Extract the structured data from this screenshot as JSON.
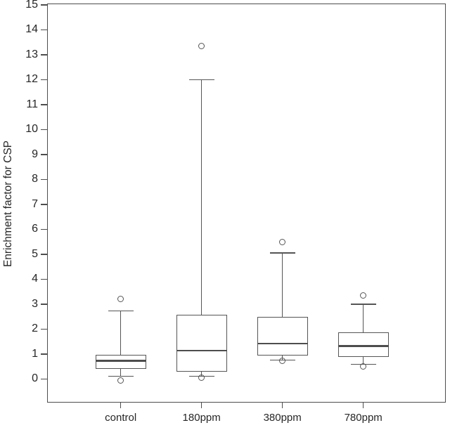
{
  "figure": {
    "background": "#ffffff",
    "line_color": "#555555",
    "text_color": "#262626"
  },
  "chart_data": {
    "type": "boxplot",
    "title": "",
    "xlabel": "",
    "ylabel": "Enrichment factor for CSP",
    "categories": [
      "control",
      "180ppm",
      "380ppm",
      "780ppm"
    ],
    "y_ticks": [
      0,
      1,
      2,
      3,
      4,
      5,
      6,
      7,
      8,
      9,
      10,
      11,
      12,
      13,
      14,
      15
    ],
    "ylim": [
      -0.95,
      15.05
    ],
    "xlim": [
      0.09,
      5.02
    ],
    "grid": false,
    "legend": "none",
    "series": [
      {
        "category": "control",
        "whisker_low": 0.1,
        "q1": 0.39,
        "median": 0.72,
        "q3": 0.96,
        "whisker_high": 2.72,
        "outliers": [
          3.2,
          -0.05
        ]
      },
      {
        "category": "180ppm",
        "whisker_low": 0.11,
        "q1": 0.28,
        "median": 1.13,
        "q3": 2.56,
        "whisker_high": 12.0,
        "outliers": [
          13.35,
          0.05
        ]
      },
      {
        "category": "380ppm",
        "whisker_low": 0.76,
        "q1": 0.93,
        "median": 1.41,
        "q3": 2.48,
        "whisker_high": 5.05,
        "outliers": [
          5.5,
          0.72
        ]
      },
      {
        "category": "780ppm",
        "whisker_low": 0.58,
        "q1": 0.87,
        "median": 1.32,
        "q3": 1.86,
        "whisker_high": 3.0,
        "outliers": [
          3.35,
          0.49
        ]
      }
    ]
  }
}
